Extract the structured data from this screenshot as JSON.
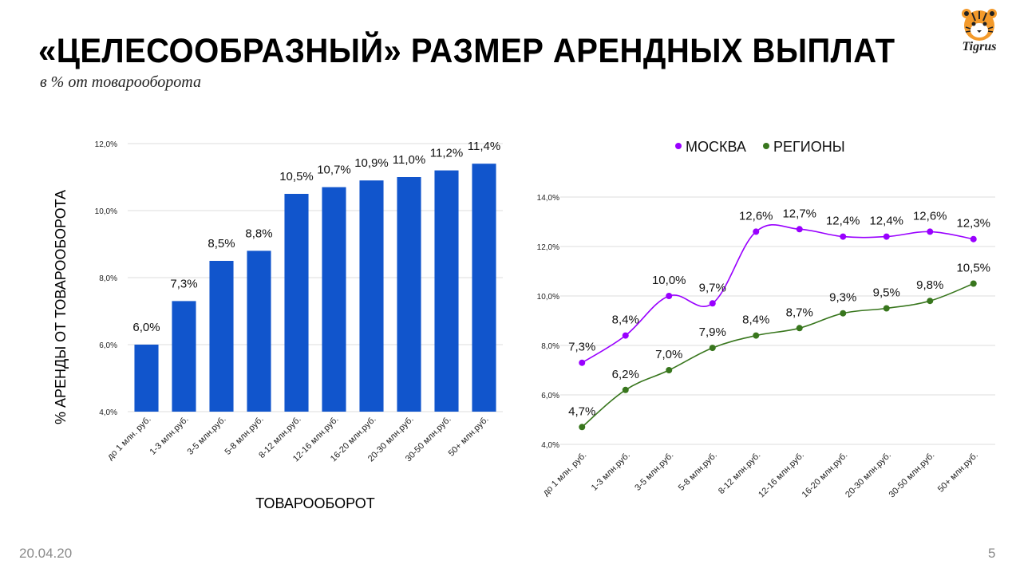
{
  "header": {
    "title": "«ЦЕЛЕСООБРАЗНЫЙ» РАЗМЕР АРЕНДНЫХ ВЫПЛАТ",
    "subtitle": "в % от товарооборота",
    "logo_text": "Tigrus"
  },
  "footer": {
    "date": "20.04.20",
    "page": "5"
  },
  "colors": {
    "bar": "#1155cc",
    "moscow": "#9900ff",
    "regions": "#38761d",
    "grid": "#dcdcdc"
  },
  "chart_data": [
    {
      "type": "bar",
      "xlabel": "ТОВАРООБОРОТ",
      "ylabel": "% АРЕНДЫ ОТ ТОВАРООБОРОТА",
      "ylim": [
        4.0,
        12.0
      ],
      "yticks": [
        4.0,
        6.0,
        8.0,
        10.0,
        12.0
      ],
      "ytick_labels": [
        "4,0%",
        "6,0%",
        "8,0%",
        "10,0%",
        "12,0%"
      ],
      "categories": [
        "до 1 млн. руб.",
        "1-3 млн.руб.",
        "3-5 млн.руб.",
        "5-8 млн.руб.",
        "8-12 млн.руб.",
        "12-16 млн.руб.",
        "16-20 млн.руб.",
        "20-30 млн.руб.",
        "30-50 млн.руб.",
        "50+ млн.руб."
      ],
      "values": [
        6.0,
        7.3,
        8.5,
        8.8,
        10.5,
        10.7,
        10.9,
        11.0,
        11.2,
        11.4
      ],
      "value_labels": [
        "6,0%",
        "7,3%",
        "8,5%",
        "8,8%",
        "10,5%",
        "10,7%",
        "10,9%",
        "11,0%",
        "11,2%",
        "11,4%"
      ],
      "grid": true
    },
    {
      "type": "line",
      "ylim": [
        4.0,
        14.0
      ],
      "yticks": [
        4.0,
        6.0,
        8.0,
        10.0,
        12.0,
        14.0
      ],
      "ytick_labels": [
        "4,0%",
        "6,0%",
        "8,0%",
        "10,0%",
        "12,0%",
        "14,0%"
      ],
      "categories": [
        "до 1 млн. руб.",
        "1-3 млн.руб.",
        "3-5 млн.руб.",
        "5-8 млн.руб.",
        "8-12 млн.руб.",
        "12-16 млн.руб.",
        "16-20 млн.руб.",
        "20-30 млн.руб.",
        "30-50 млн.руб.",
        "50+ млн.руб."
      ],
      "legend_position": "top",
      "grid": true,
      "series": [
        {
          "name": "МОСКВА",
          "color": "#9900ff",
          "values": [
            7.3,
            8.4,
            10.0,
            9.7,
            12.6,
            12.7,
            12.4,
            12.4,
            12.6,
            12.3
          ],
          "value_labels": [
            "7,3%",
            "8,4%",
            "10,0%",
            "9,7%",
            "12,6%",
            "12,7%",
            "12,4%",
            "12,4%",
            "12,6%",
            "12,3%"
          ]
        },
        {
          "name": "РЕГИОНЫ",
          "color": "#38761d",
          "values": [
            4.7,
            6.2,
            7.0,
            7.9,
            8.4,
            8.7,
            9.3,
            9.5,
            9.8,
            10.5
          ],
          "value_labels": [
            "4,7%",
            "6,2%",
            "7,0%",
            "7,9%",
            "8,4%",
            "8,7%",
            "9,3%",
            "9,5%",
            "9,8%",
            "10,5%"
          ]
        }
      ]
    }
  ]
}
